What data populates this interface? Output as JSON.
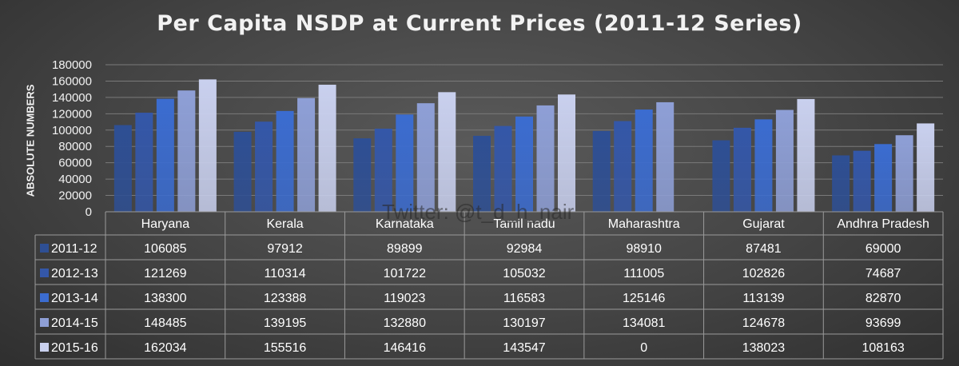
{
  "chart_data": {
    "type": "bar",
    "title": "Per Capita NSDP at Current Prices (2011-12 Series)",
    "ylabel": "ABSOLUTE NUMBERS",
    "ylim": [
      0,
      180000
    ],
    "yticks": [
      0,
      20000,
      40000,
      60000,
      80000,
      100000,
      120000,
      140000,
      160000,
      180000
    ],
    "grid": true,
    "legend": "data-table",
    "categories": [
      "Haryana",
      "Kerala",
      "Karnataka",
      "Tamil nadu",
      "Maharashtra",
      "Gujarat",
      "Andhra Pradesh"
    ],
    "series": [
      {
        "name": "2011-12",
        "color": "#2e4f94",
        "values": [
          106085,
          97912,
          89899,
          92984,
          98910,
          87481,
          69000
        ]
      },
      {
        "name": "2012-13",
        "color": "#3457a8",
        "values": [
          121269,
          110314,
          101722,
          105032,
          111005,
          102826,
          74687
        ]
      },
      {
        "name": "2013-14",
        "color": "#3b6cd0",
        "values": [
          138300,
          123388,
          119023,
          116583,
          125146,
          113139,
          82870
        ]
      },
      {
        "name": "2014-15",
        "color": "#8e9fd6",
        "values": [
          148485,
          139195,
          132880,
          130197,
          134081,
          124678,
          93699
        ]
      },
      {
        "name": "2015-16",
        "color": "#c9d0ee",
        "values": [
          162034,
          155516,
          146416,
          143547,
          0,
          138023,
          108163
        ]
      }
    ]
  },
  "watermark": "Twitter: @t_d_h_nair"
}
